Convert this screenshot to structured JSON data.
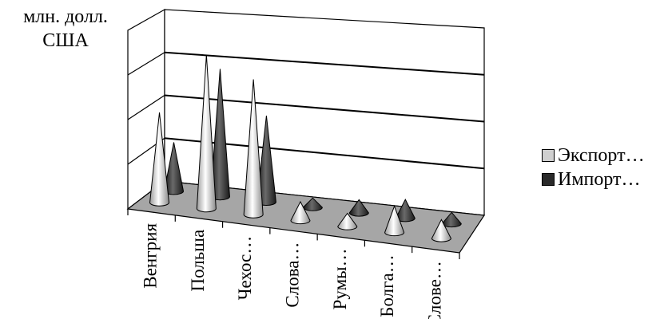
{
  "chart_data": {
    "type": "bar",
    "ylabel_lines": [
      "млн. долл.",
      "США"
    ],
    "categories": [
      "Венгрия",
      "Польша",
      "Чехос…",
      "Слова…",
      "Румы…",
      "Болга…",
      "Слове…"
    ],
    "series": [
      {
        "name": "Экспорт…",
        "color": "#cfcfcf",
        "values": [
          2.4,
          4.1,
          3.6,
          0.5,
          0.35,
          0.7,
          0.5
        ]
      },
      {
        "name": "Импорт…",
        "color": "#2a2a2a",
        "values": [
          1.3,
          3.4,
          2.3,
          0.25,
          0.35,
          0.5,
          0.3
        ]
      }
    ],
    "ylim": [
      0,
      4
    ],
    "grid": true,
    "legend": "right",
    "shape": "cone"
  }
}
